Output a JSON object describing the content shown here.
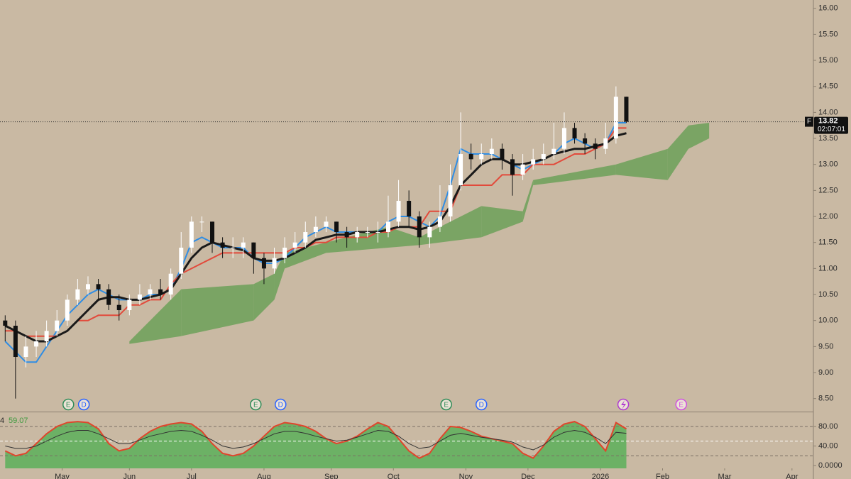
{
  "chart_data": {
    "type": "candlestick",
    "xlim": [
      -0.5,
      78
    ],
    "xticks": [
      {
        "value": 5.5,
        "label": "May"
      },
      {
        "value": 12,
        "label": "Jun"
      },
      {
        "value": 18,
        "label": "Jul"
      },
      {
        "value": 25,
        "label": "Aug"
      },
      {
        "value": 31.5,
        "label": "Sep"
      },
      {
        "value": 37.5,
        "label": "Oct"
      },
      {
        "value": 44.5,
        "label": "Nov"
      },
      {
        "value": 50.5,
        "label": "Dec"
      },
      {
        "value": 57.5,
        "label": "2026"
      },
      {
        "value": 63.5,
        "label": "Feb"
      },
      {
        "value": 69.5,
        "label": "Mar"
      },
      {
        "value": 76,
        "label": "Apr"
      }
    ],
    "ylim": [
      8.25,
      16.16
    ],
    "yticks": [
      {
        "value": 8.5,
        "label": "8.50"
      },
      {
        "value": 9,
        "label": "9.00"
      },
      {
        "value": 9.5,
        "label": "9.50"
      },
      {
        "value": 10,
        "label": "10.00"
      },
      {
        "value": 10.5,
        "label": "10.50"
      },
      {
        "value": 11,
        "label": "11.00"
      },
      {
        "value": 11.5,
        "label": "11.50"
      },
      {
        "value": 12,
        "label": "12.00"
      },
      {
        "value": 12.5,
        "label": "12.50"
      },
      {
        "value": 13,
        "label": "13.00"
      },
      {
        "value": 13.5,
        "label": "13.50"
      },
      {
        "value": 14,
        "label": "14.00"
      },
      {
        "value": 14.5,
        "label": "14.50"
      },
      {
        "value": 15,
        "label": "15.00"
      },
      {
        "value": 15.5,
        "label": "15.50"
      },
      {
        "value": 16,
        "label": "16.00"
      }
    ],
    "up_color": "#ffffff",
    "down_color": "#111111",
    "open": [
      10.0,
      9.9,
      9.3,
      9.5,
      9.6,
      9.8,
      10.0,
      10.4,
      10.6,
      10.7,
      10.6,
      10.3,
      10.2,
      10.4,
      10.5,
      10.6,
      10.5,
      10.9,
      11.4,
      11.9,
      11.9,
      11.5,
      11.4,
      11.4,
      11.5,
      11.2,
      11.0,
      11.2,
      11.4,
      11.5,
      11.7,
      11.8,
      11.9,
      11.7,
      11.6,
      11.7,
      11.7,
      11.7,
      11.9,
      12.3,
      12.0,
      11.6,
      11.8,
      12.0,
      12.6,
      13.2,
      13.1,
      13.2,
      13.3,
      13.1,
      12.8,
      13.0,
      13.1,
      13.2,
      13.3,
      13.7,
      13.5,
      13.4,
      13.3,
      13.5,
      14.3
    ],
    "high": [
      10.1,
      10.0,
      9.7,
      9.8,
      10.0,
      10.2,
      10.5,
      10.8,
      10.85,
      10.8,
      10.7,
      10.5,
      10.5,
      10.7,
      10.7,
      10.8,
      11.0,
      11.7,
      12.0,
      12.0,
      11.9,
      11.6,
      11.6,
      11.6,
      11.5,
      11.3,
      11.4,
      11.6,
      11.7,
      11.9,
      12.0,
      12.0,
      11.9,
      11.8,
      11.8,
      11.8,
      11.9,
      12.4,
      12.7,
      12.5,
      12.1,
      11.9,
      12.6,
      13.0,
      14.0,
      13.4,
      13.4,
      13.5,
      13.4,
      13.2,
      13.2,
      13.3,
      13.4,
      13.8,
      14.0,
      13.8,
      13.6,
      13.5,
      13.8,
      14.5,
      14.3
    ],
    "low": [
      9.6,
      8.5,
      9.1,
      9.3,
      9.5,
      9.7,
      9.9,
      10.3,
      10.5,
      10.4,
      10.2,
      10.0,
      10.1,
      10.3,
      10.4,
      10.4,
      10.4,
      10.8,
      11.3,
      11.7,
      11.3,
      11.2,
      11.2,
      11.2,
      10.9,
      10.7,
      10.9,
      11.1,
      11.3,
      11.4,
      11.6,
      11.7,
      11.5,
      11.4,
      11.5,
      11.6,
      11.5,
      11.6,
      11.8,
      11.8,
      11.4,
      11.4,
      11.7,
      11.9,
      12.5,
      12.9,
      13.0,
      13.1,
      12.9,
      12.4,
      12.7,
      12.9,
      13.0,
      13.1,
      13.2,
      13.4,
      13.2,
      13.1,
      13.2,
      13.4,
      13.8
    ],
    "close": [
      9.9,
      9.3,
      9.5,
      9.6,
      9.8,
      10.0,
      10.4,
      10.6,
      10.7,
      10.6,
      10.3,
      10.2,
      10.4,
      10.5,
      10.6,
      10.5,
      10.9,
      11.4,
      11.9,
      11.9,
      11.5,
      11.4,
      11.4,
      11.5,
      11.2,
      11.0,
      11.2,
      11.4,
      11.5,
      11.7,
      11.8,
      11.9,
      11.7,
      11.6,
      11.7,
      11.7,
      11.7,
      11.9,
      12.3,
      12.0,
      11.6,
      11.8,
      12.0,
      12.6,
      13.2,
      13.1,
      13.2,
      13.3,
      13.1,
      12.8,
      13.0,
      13.1,
      13.2,
      13.3,
      13.7,
      13.5,
      13.4,
      13.3,
      13.5,
      14.3,
      13.82
    ],
    "lines": [
      {
        "color": "#2f8de4",
        "values": [
          9.6,
          9.4,
          9.2,
          9.2,
          9.5,
          9.8,
          10.1,
          10.3,
          10.5,
          10.6,
          10.5,
          10.4,
          10.4,
          10.4,
          10.5,
          10.5,
          10.6,
          11.0,
          11.5,
          11.6,
          11.5,
          11.4,
          11.4,
          11.4,
          11.2,
          11.1,
          11.1,
          11.2,
          11.4,
          11.6,
          11.7,
          11.8,
          11.7,
          11.7,
          11.7,
          11.7,
          11.7,
          11.9,
          12.0,
          12.0,
          11.9,
          11.8,
          12.0,
          12.6,
          13.3,
          13.2,
          13.2,
          13.2,
          13.1,
          13.0,
          12.9,
          13.0,
          13.1,
          13.2,
          13.4,
          13.5,
          13.4,
          13.3,
          13.4,
          13.8,
          13.8
        ]
      },
      {
        "color": "#e24a3b",
        "values": [
          9.8,
          9.8,
          9.7,
          9.7,
          9.7,
          9.7,
          9.8,
          10.0,
          10.0,
          10.1,
          10.1,
          10.1,
          10.3,
          10.3,
          10.4,
          10.4,
          10.7,
          10.9,
          11.0,
          11.1,
          11.2,
          11.3,
          11.3,
          11.3,
          11.3,
          11.3,
          11.3,
          11.3,
          11.4,
          11.4,
          11.5,
          11.5,
          11.6,
          11.6,
          11.6,
          11.6,
          11.7,
          11.7,
          11.8,
          11.8,
          11.8,
          12.1,
          12.1,
          12.1,
          12.6,
          12.6,
          12.6,
          12.6,
          12.8,
          12.8,
          12.8,
          13.0,
          13.0,
          13.0,
          13.1,
          13.2,
          13.2,
          13.3,
          13.4,
          13.7,
          13.7
        ]
      },
      {
        "color": "#1a1a1a",
        "values": [
          9.9,
          9.8,
          9.7,
          9.6,
          9.6,
          9.7,
          9.8,
          10.0,
          10.2,
          10.4,
          10.45,
          10.45,
          10.4,
          10.4,
          10.45,
          10.5,
          10.6,
          10.9,
          11.2,
          11.4,
          11.5,
          11.45,
          11.4,
          11.35,
          11.2,
          11.15,
          11.15,
          11.2,
          11.3,
          11.4,
          11.55,
          11.6,
          11.65,
          11.65,
          11.7,
          11.7,
          11.7,
          11.75,
          11.8,
          11.8,
          11.75,
          11.8,
          11.9,
          12.2,
          12.6,
          12.8,
          13.0,
          13.1,
          13.1,
          13.0,
          13.0,
          13.05,
          13.1,
          13.2,
          13.25,
          13.3,
          13.3,
          13.35,
          13.4,
          13.55,
          13.6
        ]
      }
    ],
    "cloud": {
      "color": "#5f9e4f",
      "x": [
        12,
        17,
        24,
        26,
        27,
        31,
        37,
        40,
        46,
        50,
        51,
        59,
        64,
        66,
        68
      ],
      "lower": [
        9.55,
        9.7,
        10.0,
        10.4,
        11.0,
        11.3,
        11.4,
        11.45,
        11.6,
        11.9,
        12.6,
        12.8,
        12.7,
        13.3,
        13.5
      ],
      "upper": [
        9.6,
        10.6,
        10.7,
        10.9,
        11.3,
        11.5,
        11.8,
        11.6,
        12.2,
        12.1,
        12.7,
        13.0,
        13.3,
        13.75,
        13.8
      ]
    },
    "current_price": 13.82,
    "symbol": "F",
    "countdown": "02:07:01",
    "events": [
      {
        "x": 6.1,
        "label": "E",
        "color": "#2e8b57"
      },
      {
        "x": 7.6,
        "label": "D",
        "color": "#2962ff"
      },
      {
        "x": 24.2,
        "label": "E",
        "color": "#2e8b57"
      },
      {
        "x": 26.6,
        "label": "D",
        "color": "#2962ff"
      },
      {
        "x": 42.6,
        "label": "E",
        "color": "#2e8b57"
      },
      {
        "x": 46.0,
        "label": "D",
        "color": "#2962ff"
      },
      {
        "x": 59.7,
        "color": "#b03ad0"
      },
      {
        "x": 65.3,
        "label": "E",
        "color": "#d050e0"
      }
    ],
    "indicator": {
      "type": "line",
      "label": "4",
      "last_value": 59.07,
      "ylim": [
        -5.8,
        107.6
      ],
      "yticks": [
        {
          "value": 80,
          "label": "80.00"
        },
        {
          "value": 40,
          "label": "40.00"
        },
        {
          "value": 0,
          "label": "0.0000"
        }
      ],
      "levels": [
        20,
        50,
        80
      ],
      "fill": "#4caf50",
      "series": [
        {
          "color": "#e0452c",
          "values": [
            30,
            20,
            25,
            45,
            65,
            80,
            88,
            90,
            88,
            75,
            45,
            30,
            35,
            55,
            70,
            80,
            85,
            88,
            85,
            70,
            45,
            25,
            20,
            25,
            40,
            60,
            80,
            88,
            85,
            80,
            70,
            55,
            45,
            50,
            60,
            75,
            88,
            80,
            55,
            30,
            15,
            25,
            55,
            80,
            78,
            70,
            60,
            55,
            50,
            45,
            25,
            15,
            40,
            70,
            85,
            90,
            80,
            55,
            30,
            88,
            75
          ]
        },
        {
          "color": "#333333",
          "values": [
            40,
            35,
            35,
            40,
            50,
            60,
            68,
            72,
            72,
            65,
            55,
            45,
            45,
            52,
            60,
            65,
            70,
            72,
            70,
            62,
            52,
            40,
            35,
            38,
            45,
            55,
            65,
            70,
            70,
            66,
            60,
            55,
            50,
            52,
            58,
            65,
            72,
            70,
            60,
            45,
            35,
            38,
            50,
            62,
            66,
            62,
            58,
            55,
            52,
            48,
            38,
            32,
            42,
            58,
            68,
            72,
            68,
            58,
            45,
            68,
            66
          ]
        }
      ]
    }
  }
}
